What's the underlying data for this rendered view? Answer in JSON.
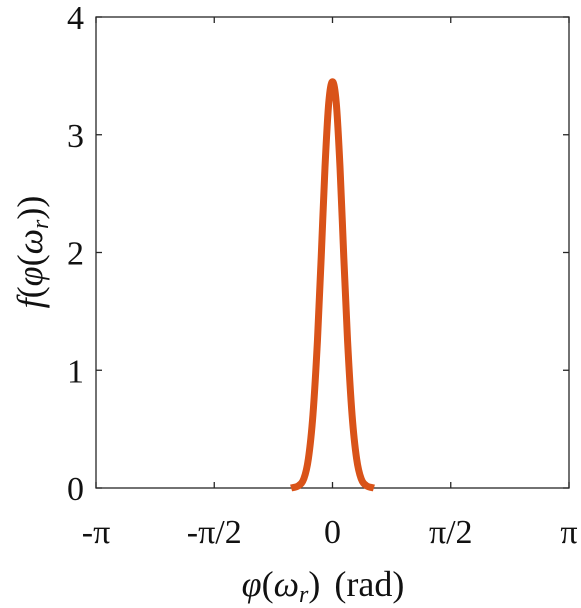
{
  "chart_data": {
    "type": "line",
    "xlabel_parts": {
      "phi": "φ",
      "open": "(",
      "omega": "ω",
      "sub": "r",
      "close": ")",
      "unit": "(rad)"
    },
    "ylabel_parts": {
      "f": "f",
      "open": "(",
      "phi": "φ",
      "open2": "(",
      "omega": "ω",
      "sub": "r",
      "close": "))"
    },
    "xlim": [
      -3.14159,
      3.14159
    ],
    "ylim": [
      0,
      4
    ],
    "xticks": [
      {
        "value": -3.14159,
        "label": "-π"
      },
      {
        "value": -1.5708,
        "label": "-π/2"
      },
      {
        "value": 0,
        "label": "0"
      },
      {
        "value": 1.5708,
        "label": "π/2"
      },
      {
        "value": 3.14159,
        "label": "π"
      }
    ],
    "yticks": [
      {
        "value": 0,
        "label": "0"
      },
      {
        "value": 1,
        "label": "1"
      },
      {
        "value": 2,
        "label": "2"
      },
      {
        "value": 3,
        "label": "3"
      },
      {
        "value": 4,
        "label": "4"
      }
    ],
    "grid": false,
    "series": [
      {
        "color": "#d95319",
        "x": [
          -0.55,
          -0.45,
          -0.38,
          -0.32,
          -0.26,
          -0.2,
          -0.15,
          -0.1,
          -0.05,
          0,
          0.05,
          0.1,
          0.15,
          0.2,
          0.26,
          0.32,
          0.38,
          0.45,
          0.55
        ],
        "y": [
          0.0,
          0.02,
          0.08,
          0.25,
          0.62,
          1.25,
          1.96,
          2.72,
          3.27,
          3.45,
          3.27,
          2.72,
          1.96,
          1.25,
          0.62,
          0.25,
          0.08,
          0.02,
          0.0
        ]
      }
    ]
  }
}
